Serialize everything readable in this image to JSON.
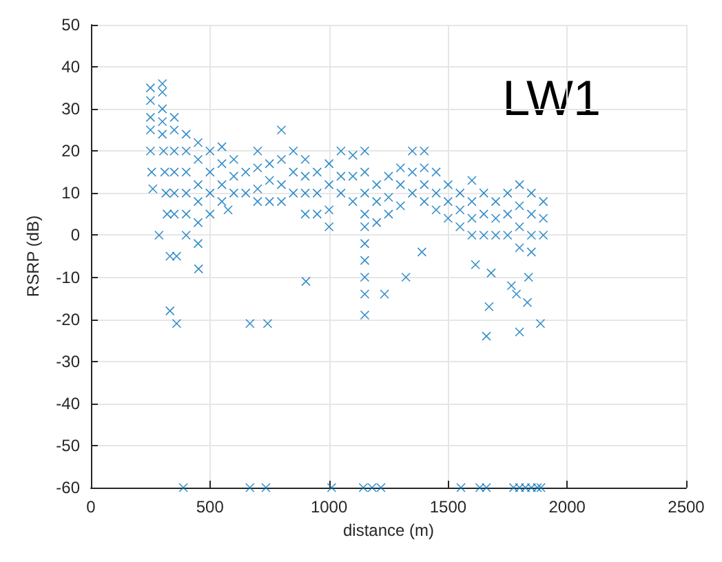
{
  "chart_data": {
    "type": "scatter",
    "xlabel": "distance (m)",
    "ylabel": "RSRP (dB)",
    "annotations": [
      "LW1"
    ],
    "xlim": [
      0,
      2500
    ],
    "ylim": [
      -60,
      50
    ],
    "xticks": [
      0,
      500,
      1000,
      1500,
      2000,
      2500
    ],
    "yticks": [
      -60,
      -50,
      -40,
      -30,
      -20,
      -10,
      0,
      10,
      20,
      30,
      40,
      50
    ],
    "grid": true,
    "marker": "cross",
    "series": [
      {
        "color": "#0072bd",
        "x": [
          250,
          250,
          250,
          250,
          250,
          255,
          260,
          300,
          300,
          300,
          300,
          300,
          305,
          310,
          315,
          320,
          350,
          350,
          350,
          350,
          350,
          350,
          360,
          400,
          400,
          400,
          400,
          400,
          400,
          450,
          450,
          450,
          450,
          450,
          450,
          500,
          500,
          500,
          500,
          550,
          550,
          550,
          550,
          600,
          600,
          600,
          650,
          650,
          700,
          700,
          700,
          700,
          750,
          750,
          750,
          800,
          800,
          800,
          800,
          850,
          850,
          850,
          900,
          900,
          900,
          900,
          950,
          950,
          950,
          1000,
          1000,
          1000,
          1000,
          1050,
          1050,
          1050,
          1100,
          1100,
          1100,
          1150,
          1150,
          1150,
          1150,
          1150,
          1150,
          1150,
          1150,
          1150,
          1150,
          1200,
          1200,
          1200,
          1250,
          1250,
          1250,
          1300,
          1300,
          1300,
          1350,
          1350,
          1350,
          1400,
          1400,
          1400,
          1400,
          1450,
          1450,
          1450,
          1500,
          1500,
          1500,
          1550,
          1550,
          1550,
          1600,
          1600,
          1600,
          1600,
          1650,
          1650,
          1650,
          1700,
          1700,
          1700,
          1750,
          1750,
          1750,
          1800,
          1800,
          1800,
          1800,
          1850,
          1850,
          1850,
          1850,
          1900,
          1900,
          1900,
          286,
          332,
          332,
          360,
          452,
          668,
          742,
          903,
          576,
          1233,
          1323,
          1672,
          1661,
          1800,
          1888,
          1766,
          1787,
          1833,
          1681,
          1838,
          1615,
          1390,
          388,
          668,
          735,
          1011,
          1144,
          1181,
          1218,
          1554,
          1633,
          1661,
          1775,
          1800,
          1825,
          1850,
          1875,
          1890
        ],
        "values": [
          35,
          32,
          28,
          25,
          20,
          15,
          11,
          36,
          34,
          30,
          27,
          24,
          20,
          15,
          10,
          5,
          28,
          25,
          20,
          15,
          10,
          5,
          -5,
          24,
          20,
          15,
          10,
          5,
          0,
          22,
          18,
          12,
          8,
          3,
          -2,
          20,
          15,
          10,
          5,
          21,
          17,
          12,
          8,
          18,
          14,
          10,
          15,
          10,
          20,
          16,
          11,
          8,
          17,
          13,
          8,
          25,
          18,
          12,
          8,
          20,
          15,
          10,
          18,
          14,
          10,
          5,
          15,
          10,
          5,
          17,
          12,
          6,
          2,
          20,
          14,
          10,
          19,
          14,
          8,
          20,
          15,
          10,
          5,
          2,
          -2,
          -6,
          -10,
          -14,
          -19,
          12,
          8,
          3,
          14,
          9,
          5,
          16,
          12,
          7,
          20,
          15,
          10,
          20,
          16,
          12,
          8,
          15,
          10,
          6,
          12,
          8,
          4,
          10,
          6,
          2,
          13,
          8,
          4,
          0,
          10,
          5,
          0,
          8,
          4,
          0,
          10,
          5,
          0,
          12,
          7,
          2,
          -3,
          10,
          5,
          0,
          -4,
          8,
          4,
          0,
          0,
          -5,
          -18,
          -21,
          -8,
          -21,
          -21,
          -11,
          6,
          -14,
          -10,
          -17,
          -24,
          -23,
          -21,
          -12,
          -14,
          -16,
          -9,
          -10,
          -7,
          -4,
          -60,
          -60,
          -60,
          -60,
          -60,
          -60,
          -60,
          -60,
          -60,
          -60,
          -60,
          -60,
          -60,
          -60,
          -60,
          -60
        ]
      }
    ]
  }
}
